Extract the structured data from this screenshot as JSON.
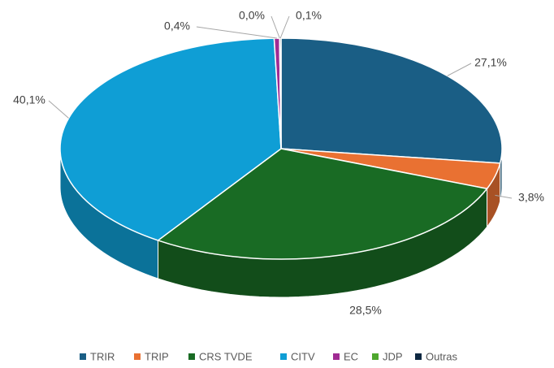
{
  "chart_data": {
    "type": "pie3d",
    "categories": [
      "TRIR",
      "TRIP",
      "CRS TVDE",
      "CITV",
      "EC",
      "JDP",
      "Outras"
    ],
    "values": [
      27.1,
      3.8,
      28.5,
      40.1,
      0.4,
      0.0,
      0.1
    ],
    "value_labels": [
      "27,1%",
      "3,8%",
      "28,5%",
      "40,1%",
      "0,4%",
      "0,0%",
      "0,1%"
    ],
    "colors": [
      "#1a5e85",
      "#e97132",
      "#196b24",
      "#0f9ed5",
      "#a02b93",
      "#4ea72e",
      "#0e2841"
    ],
    "legend": "bottom"
  }
}
